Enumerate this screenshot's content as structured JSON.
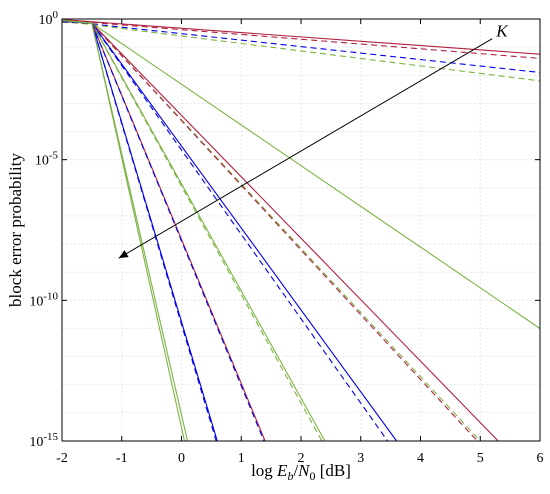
{
  "chart_data": {
    "type": "line",
    "title": "",
    "xlabel_prefix": "log",
    "xlabel_E": "E",
    "xlabel_b": "b",
    "xlabel_slash": "/",
    "xlabel_N": "N",
    "xlabel_0": "0",
    "xlabel_unit": "[dB]",
    "ylabel": "block error probability",
    "xlim": [
      -2,
      6
    ],
    "ylim_log10": [
      -15,
      0
    ],
    "y_scale": "log",
    "grid": true,
    "xticks": [
      "-2",
      "-1",
      "0",
      "1",
      "2",
      "3",
      "4",
      "5",
      "6"
    ],
    "yticks": [
      {
        "base": "10",
        "exp": "0",
        "log10": 0
      },
      {
        "base": "10",
        "exp": "-5",
        "log10": -5
      },
      {
        "base": "10",
        "exp": "-10",
        "log10": -10
      },
      {
        "base": "10",
        "exp": "-15",
        "log10": -15
      }
    ],
    "annotation": {
      "label": "K",
      "from": [
        5.2,
        -0.7
      ],
      "to": [
        -1.05,
        -8.5
      ]
    },
    "colors": {
      "red": "#b0203f",
      "green": "#7cb342",
      "blue": "#0000ee"
    },
    "series": [
      {
        "color": "red",
        "style": "solid",
        "x": [
          -2,
          6
        ],
        "log10_y": [
          -0.02,
          -1.25
        ]
      },
      {
        "color": "red",
        "style": "dashed",
        "x": [
          -2,
          6
        ],
        "log10_y": [
          -0.04,
          -1.4
        ]
      },
      {
        "color": "blue",
        "style": "dashed",
        "x": [
          -2,
          6
        ],
        "log10_y": [
          -0.06,
          -1.9
        ]
      },
      {
        "color": "green",
        "style": "dashed",
        "x": [
          -2,
          6
        ],
        "log10_y": [
          -0.07,
          -2.2
        ]
      },
      {
        "color": "green",
        "style": "solid",
        "x": [
          -2,
          -1.5,
          6
        ],
        "log10_y": [
          -0.1,
          -0.15,
          -11.0
        ]
      },
      {
        "color": "green",
        "style": "dashed",
        "x": [
          -2,
          -1.5,
          5.0
        ],
        "log10_y": [
          -0.12,
          -0.16,
          -15
        ]
      },
      {
        "color": "red",
        "style": "solid",
        "x": [
          -2,
          -1.5,
          5.3
        ],
        "log10_y": [
          -0.09,
          -0.15,
          -15
        ]
      },
      {
        "color": "red",
        "style": "dashed",
        "x": [
          -2,
          -1.5,
          4.95
        ],
        "log10_y": [
          -0.1,
          -0.16,
          -15
        ]
      },
      {
        "color": "blue",
        "style": "solid",
        "x": [
          -2,
          -1.5,
          3.6
        ],
        "log10_y": [
          -0.08,
          -0.15,
          -15
        ]
      },
      {
        "color": "blue",
        "style": "dashed",
        "x": [
          -2,
          -1.5,
          3.45
        ],
        "log10_y": [
          -0.09,
          -0.16,
          -15
        ]
      },
      {
        "color": "green",
        "style": "solid",
        "x": [
          -2,
          -1.5,
          2.4
        ],
        "log10_y": [
          -0.07,
          -0.15,
          -15
        ]
      },
      {
        "color": "green",
        "style": "dashed",
        "x": [
          -2,
          -1.5,
          2.35
        ],
        "log10_y": [
          -0.08,
          -0.16,
          -15
        ]
      },
      {
        "color": "red",
        "style": "solid",
        "x": [
          -2,
          -1.5,
          1.4
        ],
        "log10_y": [
          -0.06,
          -0.15,
          -15
        ]
      },
      {
        "color": "blue",
        "style": "dashed",
        "x": [
          -2,
          -1.5,
          1.38
        ],
        "log10_y": [
          -0.07,
          -0.16,
          -15
        ]
      },
      {
        "color": "blue",
        "style": "solid",
        "x": [
          -2,
          -1.5,
          0.6
        ],
        "log10_y": [
          -0.05,
          -0.15,
          -15
        ]
      },
      {
        "color": "blue",
        "style": "dashed",
        "x": [
          -2,
          -1.5,
          0.58
        ],
        "log10_y": [
          -0.06,
          -0.16,
          -15
        ]
      },
      {
        "color": "green",
        "style": "solid",
        "x": [
          -2,
          -1.5,
          0.05
        ],
        "log10_y": [
          -0.04,
          -0.15,
          -15
        ]
      },
      {
        "color": "green",
        "style": "solid",
        "x": [
          -2,
          -1.5,
          0.1
        ],
        "log10_y": [
          -0.045,
          -0.16,
          -15
        ]
      }
    ]
  }
}
